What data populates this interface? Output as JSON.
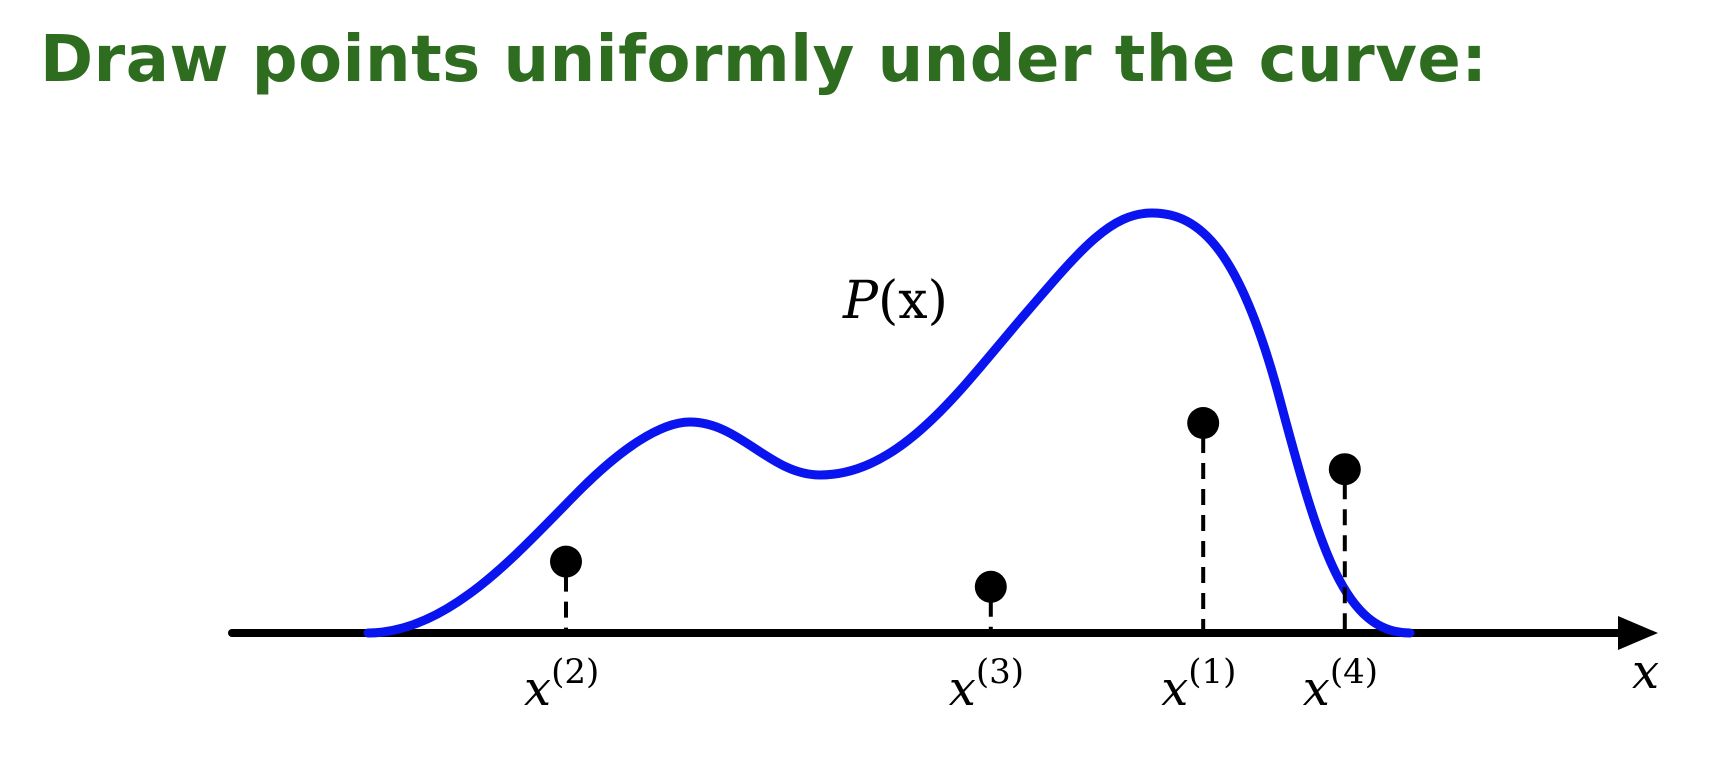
{
  "slide": {
    "title": "Draw points uniformly under the curve:"
  },
  "diagram": {
    "curve_label_base": "P",
    "curve_label_arg": "(x)",
    "axis_label": "x",
    "points": [
      {
        "var": "x",
        "sup": "(2)",
        "x_frac": 0.2,
        "h_frac": 0.17
      },
      {
        "var": "x",
        "sup": "(3)",
        "x_frac": 0.56,
        "h_frac": 0.11
      },
      {
        "var": "x",
        "sup": "(1)",
        "x_frac": 0.74,
        "h_frac": 0.5
      },
      {
        "var": "x",
        "sup": "(4)",
        "x_frac": 0.86,
        "h_frac": 0.39
      }
    ]
  },
  "colors": {
    "title": "#2e6d1f",
    "curve": "#0a14ee",
    "axis": "#000000",
    "points": "#000000"
  }
}
